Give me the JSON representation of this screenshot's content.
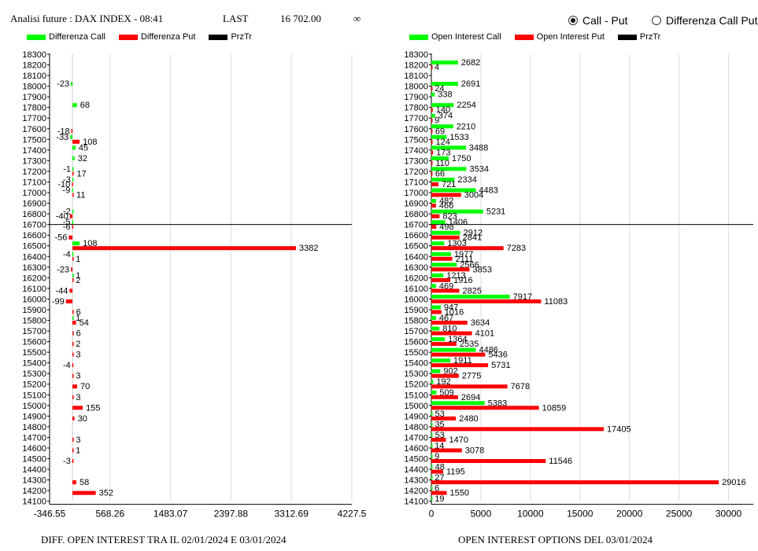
{
  "header": {
    "title": "Analisi future : DAX INDEX - 08:41",
    "last_label": "LAST",
    "last_value": "16 702.00",
    "infinity_symbol": "∞"
  },
  "view_options": [
    {
      "label": "Call - Put",
      "selected": true
    },
    {
      "label": "Differenza Call Put",
      "selected": false
    }
  ],
  "colors": {
    "call": "#00ff00",
    "put": "#ff0000",
    "przTr": "#000000",
    "grid": "#dddddd",
    "axis": "#000000"
  },
  "legend_left": [
    {
      "label": "Differenza Call",
      "color": "#00ff00"
    },
    {
      "label": "Differenza Put",
      "color": "#ff0000"
    },
    {
      "label": "PrzTr",
      "color": "#000000"
    }
  ],
  "legend_right": [
    {
      "label": "Open Interest Call",
      "color": "#00ff00"
    },
    {
      "label": "Open Interest Put",
      "color": "#ff0000"
    },
    {
      "label": "PrzTr",
      "color": "#000000"
    }
  ],
  "captions": {
    "left": "DIFF. OPEN INTEREST TRA IL 02/01/2024 E 03/01/2024",
    "right": "OPEN INTEREST OPTIONS DEL 03/01/2024"
  },
  "chart_data": [
    {
      "type": "bar",
      "orientation": "horizontal",
      "title": "DIFF. OPEN INTEREST TRA IL 02/01/2024 E 03/01/2024",
      "strikes": [
        "18300",
        "18200",
        "18100",
        "18000",
        "17900",
        "17800",
        "17700",
        "17600",
        "17500",
        "17400",
        "17300",
        "17200",
        "17100",
        "17000",
        "16900",
        "16800",
        "16700",
        "16600",
        "16500",
        "16400",
        "16300",
        "16200",
        "16100",
        "16000",
        "15900",
        "15800",
        "15700",
        "15600",
        "15500",
        "15400",
        "15300",
        "15200",
        "15100",
        "15000",
        "14900",
        "14800",
        "14700",
        "14600",
        "14500",
        "14400",
        "14300",
        "14200",
        "14100"
      ],
      "xticks": [
        "-346.55",
        "568.26",
        "1483.07",
        "2397.88",
        "3312.69",
        "4227.5"
      ],
      "xlim": [
        -346.55,
        4227.5
      ],
      "grid": true,
      "legend": "top-left",
      "przTr_strike": 16700,
      "series": [
        {
          "name": "Differenza Call",
          "values": [
            null,
            null,
            null,
            -23,
            null,
            68,
            null,
            null,
            -33,
            45,
            32,
            -1,
            -3,
            -9,
            null,
            -2,
            -5,
            null,
            108,
            -4,
            null,
            1,
            null,
            null,
            null,
            1,
            null,
            null,
            null,
            null,
            null,
            null,
            null,
            null,
            null,
            null,
            null,
            null,
            null,
            null,
            null,
            null,
            null
          ]
        },
        {
          "name": "Differenza Put",
          "values": [
            null,
            null,
            null,
            null,
            null,
            null,
            null,
            -18,
            108,
            null,
            null,
            17,
            -10,
            11,
            null,
            -40,
            -6,
            -56,
            3382,
            1,
            -23,
            2,
            -44,
            -99,
            6,
            54,
            6,
            2,
            3,
            -4,
            3,
            70,
            3,
            155,
            30,
            null,
            3,
            1,
            -3,
            null,
            58,
            352,
            null
          ]
        }
      ]
    },
    {
      "type": "bar",
      "orientation": "horizontal",
      "title": "OPEN INTEREST OPTIONS DEL 03/01/2024",
      "strikes": [
        "18300",
        "18200",
        "18100",
        "18000",
        "17900",
        "17800",
        "17700",
        "17600",
        "17500",
        "17400",
        "17300",
        "17200",
        "17100",
        "17000",
        "16900",
        "16800",
        "16700",
        "16600",
        "16500",
        "16400",
        "16300",
        "16200",
        "16100",
        "16000",
        "15900",
        "15800",
        "15700",
        "15600",
        "15500",
        "15400",
        "15300",
        "15200",
        "15100",
        "15000",
        "14900",
        "14800",
        "14700",
        "14600",
        "14500",
        "14400",
        "14300",
        "14200",
        "14100"
      ],
      "xticks": [
        "0",
        "5000",
        "10000",
        "15000",
        "20000",
        "25000",
        "30000"
      ],
      "xlim": [
        0,
        32500
      ],
      "grid": true,
      "legend": "top-left",
      "przTr_strike": 16700,
      "series": [
        {
          "name": "Open Interest Call",
          "values": [
            null,
            2682,
            null,
            2691,
            338,
            2254,
            374,
            2210,
            1533,
            3488,
            1750,
            3534,
            2334,
            4483,
            482,
            5231,
            1406,
            2912,
            1303,
            1977,
            2566,
            1213,
            469,
            7917,
            947,
            467,
            810,
            1364,
            4486,
            1911,
            902,
            192,
            509,
            5383,
            53,
            35,
            53,
            14,
            9,
            48,
            27,
            6,
            19
          ]
        },
        {
          "name": "Open Interest Put",
          "values": [
            null,
            4,
            null,
            24,
            null,
            140,
            9,
            69,
            124,
            173,
            110,
            66,
            721,
            3004,
            466,
            823,
            498,
            2841,
            7283,
            2111,
            3853,
            1916,
            2825,
            11083,
            1016,
            3634,
            4101,
            2535,
            5436,
            5731,
            2775,
            7678,
            2694,
            10859,
            2480,
            17405,
            1470,
            3078,
            11546,
            1195,
            29016,
            1550,
            null
          ]
        }
      ]
    }
  ]
}
